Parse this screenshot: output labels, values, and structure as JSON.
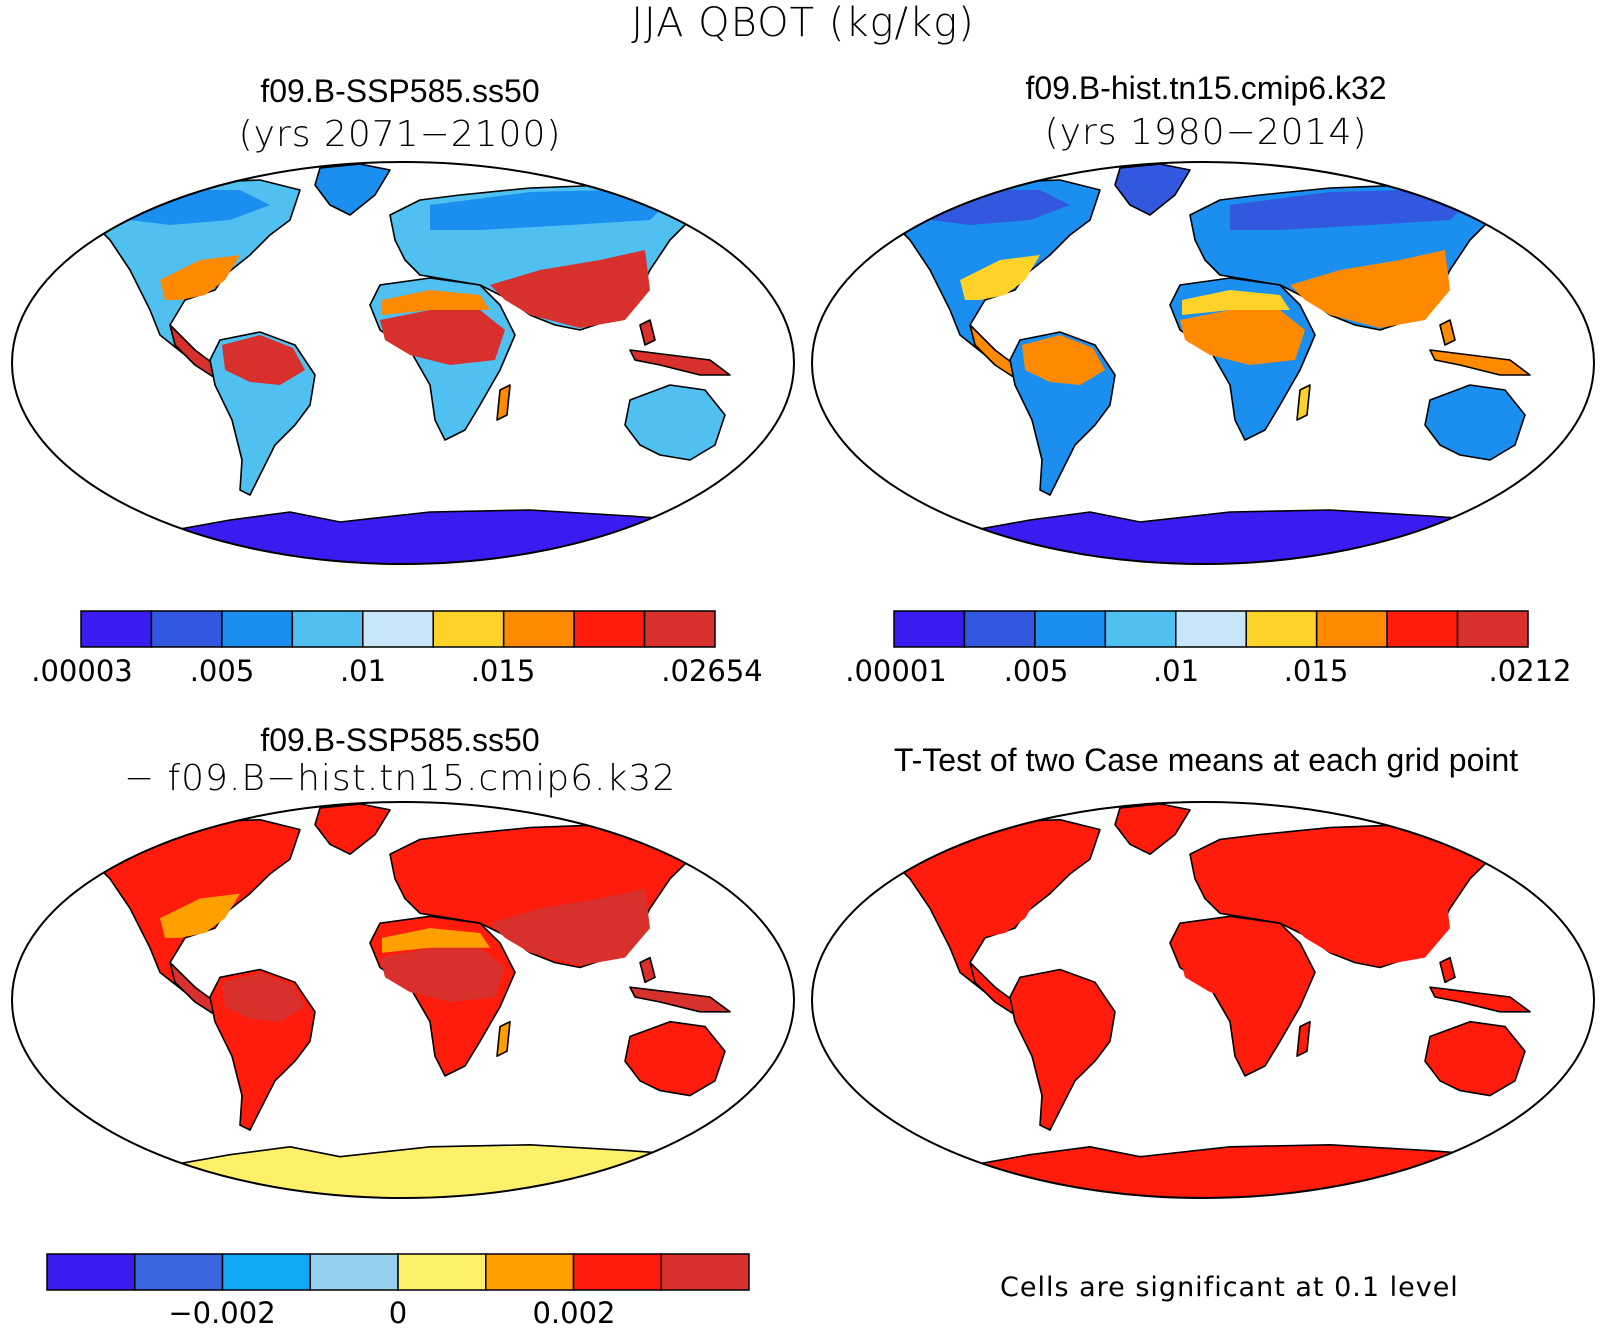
{
  "title": "JJA QBOT (kg/kg)",
  "panels": [
    {
      "title": "f09.B-SSP585.ss50",
      "subtitle": "(yrs 2071−2100)"
    },
    {
      "title": "f09.B-hist.tn15.cmip6.k32",
      "subtitle": "(yrs 1980−2014)"
    },
    {
      "title": "f09.B-SSP585.ss50",
      "subtitle": "− f09.B−hist.tn15.cmip6.k32"
    },
    {
      "title": "T-Test of two Case means at each grid point",
      "subtitle": ""
    }
  ],
  "colorbars": [
    {
      "colors": [
        "#3a1cf0",
        "#3358e0",
        "#1a8ff0",
        "#4fc0f0",
        "#c8e6f8",
        "#ffd22a",
        "#ff8a00",
        "#ff1c0c",
        "#d8302c"
      ],
      "tick_labels": [
        ".00003",
        ".005",
        ".01",
        ".015",
        ".02654"
      ]
    },
    {
      "colors": [
        "#3a1cf0",
        "#3358e0",
        "#1a8ff0",
        "#4fc0f0",
        "#c8e6f8",
        "#ffd22a",
        "#ff8a00",
        "#ff1c0c",
        "#d8302c"
      ],
      "tick_labels": [
        ".00001",
        ".005",
        ".01",
        ".015",
        ".0212"
      ]
    },
    {
      "colors": [
        "#3a1cf0",
        "#3a65e0",
        "#10a8f5",
        "#96d0ee",
        "#fff06a",
        "#ffa000",
        "#ff1c0c",
        "#d8302c"
      ],
      "tick_labels": [
        "−0.002",
        "0",
        "0.002"
      ]
    }
  ],
  "significance_note": "Cells are significant at 0.1 level",
  "map_fills": {
    "future": {
      "land": "#4fc0f0",
      "tropics": "#d8302c",
      "subtropics": "#ff8a00",
      "cold": "#1a8ff0",
      "antarctica": "#3a1cf0"
    },
    "historical": {
      "land": "#1a8ff0",
      "tropics": "#ff8a00",
      "subtropics": "#ffd22a",
      "cold": "#3358e0",
      "antarctica": "#3a1cf0"
    },
    "difference": {
      "land": "#ff1c0c",
      "tropics": "#d8302c",
      "subtropics": "#ffa000",
      "cold": "#ff1c0c",
      "antarctica": "#fff06a"
    },
    "ttest": {
      "land": "#ff1c0c",
      "tropics": "#ff1c0c",
      "subtropics": "#ff1c0c",
      "cold": "#ff1c0c",
      "antarctica": "#ff1c0c"
    }
  }
}
